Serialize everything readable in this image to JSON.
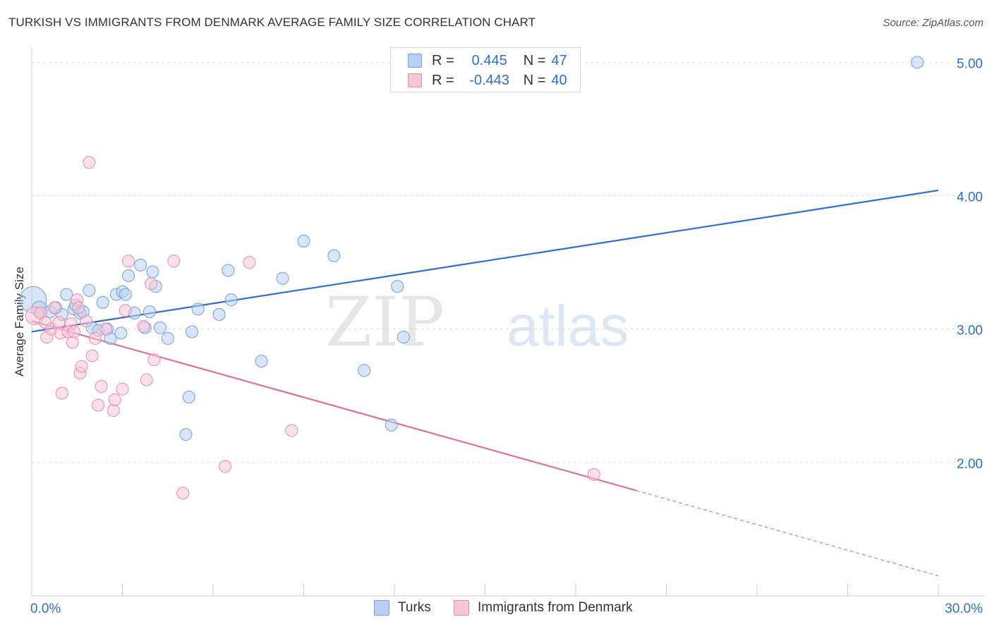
{
  "title": "TURKISH VS IMMIGRANTS FROM DENMARK AVERAGE FAMILY SIZE CORRELATION CHART",
  "source": "Source: ZipAtlas.com",
  "watermark": {
    "zip": "ZIP",
    "atlas": "atlas"
  },
  "legend": {
    "r_label": "R =",
    "n_label": "N =",
    "turks": {
      "r": "0.445",
      "n": "47"
    },
    "denmark": {
      "r": "-0.443",
      "n": "40"
    }
  },
  "colors": {
    "blue_fill": "#b8d1f3",
    "blue_stroke": "#6f9fdc",
    "blue_line": "#2b6fd1",
    "pink_fill": "#f7c6d6",
    "pink_stroke": "#e78aa9",
    "pink_line": "#e0709a",
    "axis_text": "#2b6fd1",
    "grid": "#dddddd"
  },
  "chart_data": {
    "type": "scatter",
    "title": "TURKISH VS IMMIGRANTS FROM DENMARK AVERAGE FAMILY SIZE CORRELATION CHART",
    "xlabel": "",
    "ylabel": "Average Family Size",
    "xlim": [
      0,
      30
    ],
    "ylim": [
      1.0,
      5.15
    ],
    "x_tick_labels": [
      "0.0%",
      "30.0%"
    ],
    "y_ticks": [
      2.0,
      3.0,
      4.0,
      5.0
    ],
    "y_tick_labels": [
      "2.00",
      "3.00",
      "4.00",
      "5.00"
    ],
    "grid": true,
    "legend_position": "top-center",
    "series": [
      {
        "name": "Turks",
        "color": "#6f9fdc",
        "trendline": {
          "x0": 0,
          "y0": 2.98,
          "x1": 30,
          "y1": 4.04
        },
        "points": [
          {
            "x": 0.05,
            "y": 3.22,
            "s": 2.2
          },
          {
            "x": 0.25,
            "y": 3.15,
            "s": 1.3
          },
          {
            "x": 0.6,
            "y": 3.13
          },
          {
            "x": 0.8,
            "y": 3.16
          },
          {
            "x": 1.0,
            "y": 3.11
          },
          {
            "x": 1.15,
            "y": 3.26
          },
          {
            "x": 1.4,
            "y": 3.15
          },
          {
            "x": 1.45,
            "y": 3.18
          },
          {
            "x": 1.6,
            "y": 3.12
          },
          {
            "x": 1.7,
            "y": 3.13
          },
          {
            "x": 1.9,
            "y": 3.29
          },
          {
            "x": 2.0,
            "y": 3.01
          },
          {
            "x": 2.2,
            "y": 2.99
          },
          {
            "x": 2.35,
            "y": 3.2
          },
          {
            "x": 2.5,
            "y": 3.0
          },
          {
            "x": 2.6,
            "y": 2.93
          },
          {
            "x": 2.8,
            "y": 3.26
          },
          {
            "x": 2.95,
            "y": 2.97
          },
          {
            "x": 3.0,
            "y": 3.28
          },
          {
            "x": 3.1,
            "y": 3.26
          },
          {
            "x": 3.2,
            "y": 3.4
          },
          {
            "x": 3.4,
            "y": 3.12
          },
          {
            "x": 3.6,
            "y": 3.48
          },
          {
            "x": 3.75,
            "y": 3.01
          },
          {
            "x": 3.9,
            "y": 3.13
          },
          {
            "x": 4.0,
            "y": 3.43
          },
          {
            "x": 4.1,
            "y": 3.32
          },
          {
            "x": 4.25,
            "y": 3.01
          },
          {
            "x": 4.5,
            "y": 2.93
          },
          {
            "x": 5.1,
            "y": 2.21
          },
          {
            "x": 5.2,
            "y": 2.49
          },
          {
            "x": 5.3,
            "y": 2.98
          },
          {
            "x": 5.5,
            "y": 3.15
          },
          {
            "x": 6.2,
            "y": 3.11
          },
          {
            "x": 6.5,
            "y": 3.44
          },
          {
            "x": 6.6,
            "y": 3.22
          },
          {
            "x": 7.6,
            "y": 2.76
          },
          {
            "x": 8.3,
            "y": 3.38
          },
          {
            "x": 9.0,
            "y": 3.66
          },
          {
            "x": 10.0,
            "y": 3.55
          },
          {
            "x": 11.0,
            "y": 2.69
          },
          {
            "x": 11.9,
            "y": 2.28
          },
          {
            "x": 12.1,
            "y": 3.32
          },
          {
            "x": 12.3,
            "y": 2.94
          },
          {
            "x": 29.3,
            "y": 5.0
          }
        ]
      },
      {
        "name": "Immigrants from Denmark",
        "color": "#e78aa9",
        "trendline": {
          "x0": 0,
          "y0": 3.06,
          "x1": 20.0,
          "y1": 1.79,
          "dash_to_x": 30,
          "dash_to_y": 1.15
        },
        "points": [
          {
            "x": 0.1,
            "y": 3.1,
            "s": 1.5
          },
          {
            "x": 0.3,
            "y": 3.12
          },
          {
            "x": 0.45,
            "y": 3.05
          },
          {
            "x": 0.5,
            "y": 2.94
          },
          {
            "x": 0.65,
            "y": 3.0
          },
          {
            "x": 0.75,
            "y": 3.16
          },
          {
            "x": 0.9,
            "y": 3.05
          },
          {
            "x": 0.95,
            "y": 2.97
          },
          {
            "x": 1.0,
            "y": 2.52
          },
          {
            "x": 1.2,
            "y": 2.98
          },
          {
            "x": 1.3,
            "y": 3.04
          },
          {
            "x": 1.35,
            "y": 2.9
          },
          {
            "x": 1.4,
            "y": 2.98
          },
          {
            "x": 1.5,
            "y": 3.22
          },
          {
            "x": 1.55,
            "y": 3.16
          },
          {
            "x": 1.6,
            "y": 2.67
          },
          {
            "x": 1.65,
            "y": 2.72
          },
          {
            "x": 1.8,
            "y": 3.06
          },
          {
            "x": 1.9,
            "y": 4.25
          },
          {
            "x": 2.0,
            "y": 2.8
          },
          {
            "x": 2.1,
            "y": 2.93
          },
          {
            "x": 2.2,
            "y": 2.43
          },
          {
            "x": 2.3,
            "y": 2.57
          },
          {
            "x": 2.45,
            "y": 3.0
          },
          {
            "x": 2.7,
            "y": 2.39
          },
          {
            "x": 2.75,
            "y": 2.47
          },
          {
            "x": 3.0,
            "y": 2.55
          },
          {
            "x": 3.1,
            "y": 3.14
          },
          {
            "x": 3.2,
            "y": 3.51
          },
          {
            "x": 3.7,
            "y": 3.02
          },
          {
            "x": 3.8,
            "y": 2.62
          },
          {
            "x": 3.95,
            "y": 3.34
          },
          {
            "x": 4.05,
            "y": 2.77
          },
          {
            "x": 4.7,
            "y": 3.51
          },
          {
            "x": 5.0,
            "y": 1.77
          },
          {
            "x": 6.4,
            "y": 1.97
          },
          {
            "x": 7.2,
            "y": 3.5
          },
          {
            "x": 8.6,
            "y": 2.24
          },
          {
            "x": 18.6,
            "y": 1.91
          }
        ]
      }
    ]
  }
}
